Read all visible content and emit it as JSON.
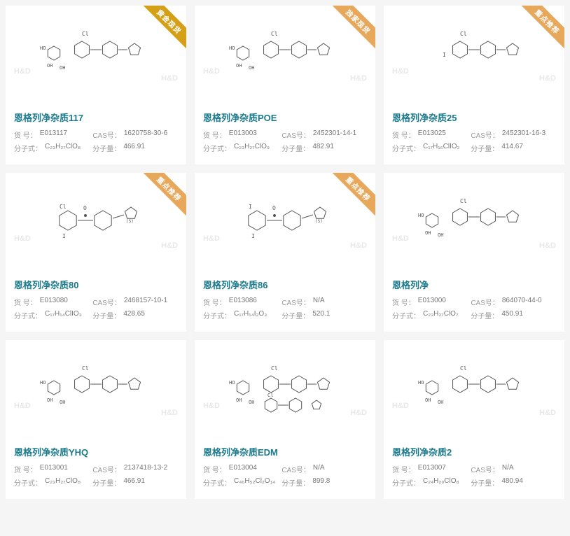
{
  "watermark": "H&D",
  "ribbons": {
    "gold": "黄金现货",
    "exclusive": "独家现货",
    "recommend": "重点推荐"
  },
  "labels": {
    "sku": "货 号：",
    "cas": "CAS号：",
    "formula": "分子式：",
    "mw": "分子量："
  },
  "products": [
    {
      "title": "恩格列净杂质117",
      "sku": "E013117",
      "cas": "1620758-30-6",
      "formula": "C₂₃H₂₇ClO₈",
      "mw": "466.91",
      "ribbon": "gold",
      "ribbon_color": "#d4a017",
      "mol": "Cl-benzyl-phenyl glucose structure"
    },
    {
      "title": "恩格列净杂质POE",
      "sku": "E013003",
      "cas": "2452301-14-1",
      "formula": "C₂₃H₂₇ClO₉",
      "mw": "482.91",
      "ribbon": "exclusive",
      "ribbon_color": "#e8a85c",
      "mol": "Cl-benzyl-phenyl peroxy glucose"
    },
    {
      "title": "恩格列净杂质25",
      "sku": "E013025",
      "cas": "2452301-16-3",
      "formula": "C₁₇H₁₆ClIO₂",
      "mw": "414.67",
      "ribbon": "recommend",
      "ribbon_color": "#e8a85c",
      "mol": "I-Cl-benzyl-phenyl-THF"
    },
    {
      "title": "恩格列净杂质80",
      "sku": "E013080",
      "cas": "2468157-10-1",
      "formula": "C₁₇H₁₄ClIO₃",
      "mw": "428.65",
      "ribbon": "recommend",
      "ribbon_color": "#e8a85c",
      "mol": "Cl-I-benzophenone-THF"
    },
    {
      "title": "恩格列净杂质86",
      "sku": "E013086",
      "cas": "N/A",
      "formula": "C₁₇H₁₄I₂O₃",
      "mw": "520.1",
      "ribbon": "recommend",
      "ribbon_color": "#e8a85c",
      "mol": "di-I-benzophenone-THF"
    },
    {
      "title": "恩格列净",
      "sku": "E013000",
      "cas": "864070-44-0",
      "formula": "C₂₃H₂₇ClO₇",
      "mw": "450.91",
      "ribbon": null,
      "mol": "Cl-benzyl-phenyl-THF glucose"
    },
    {
      "title": "恩格列净杂质YHQ",
      "sku": "E013001",
      "cas": "2137418-13-2",
      "formula": "C₂₃H₂₇ClO₈",
      "mw": "466.91",
      "ribbon": null,
      "mol": "Cl-benzyl-phenyl-THF glucose diol"
    },
    {
      "title": "恩格列净杂质EDM",
      "sku": "E013004",
      "cas": "N/A",
      "formula": "C₄₆H₅₂Cl₂O₁₄",
      "mw": "899.8",
      "ribbon": null,
      "mol": "dimer Cl-benzyl-phenyl-THF glucose"
    },
    {
      "title": "恩格列净杂质2",
      "sku": "E013007",
      "cas": "N/A",
      "formula": "C₂₄H₂₉ClO₈",
      "mw": "480.94",
      "ribbon": null,
      "mol": "OMe-Cl-benzyl-phenyl-THF glucose"
    }
  ],
  "colors": {
    "title": "#1a7a8c",
    "text": "#888",
    "card_bg": "#ffffff",
    "page_bg": "#f5f5f5",
    "watermark": "#e8e8e8"
  }
}
